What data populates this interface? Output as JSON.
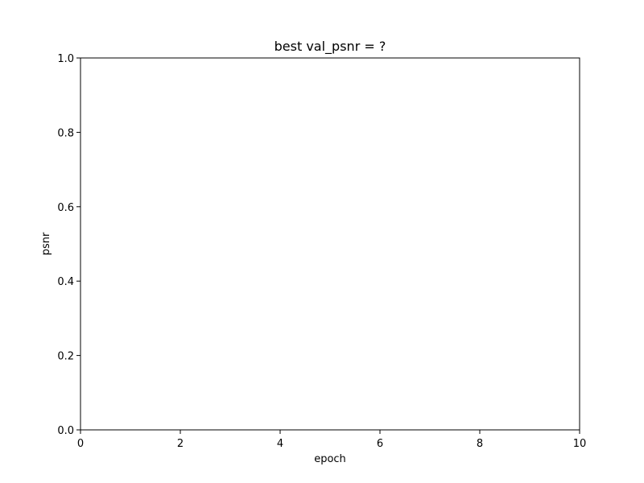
{
  "chart_data": {
    "type": "line",
    "title": "best val_psnr = ?",
    "xlabel": "epoch",
    "ylabel": "psnr",
    "xlim": [
      0,
      10
    ],
    "ylim": [
      0,
      1
    ],
    "x_ticks": [
      0,
      2,
      4,
      6,
      8,
      10
    ],
    "x_tick_labels": [
      "0",
      "2",
      "4",
      "6",
      "8",
      "10"
    ],
    "y_ticks": [
      0,
      0.2,
      0.4,
      0.6,
      0.8,
      1.0
    ],
    "y_tick_labels": [
      "0.0",
      "0.2",
      "0.4",
      "0.6",
      "0.8",
      "1.0"
    ],
    "grid": false,
    "series": []
  }
}
